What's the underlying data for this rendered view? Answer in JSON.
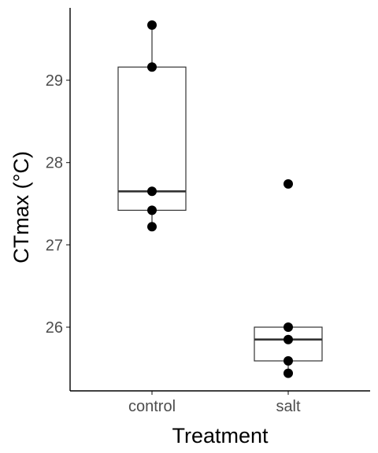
{
  "chart_data": {
    "type": "box",
    "xlabel": "Treatment",
    "ylabel": "CTmax (°C)",
    "categories": [
      "control",
      "salt"
    ],
    "ylim": [
      25.2,
      29.9
    ],
    "yticks": [
      26,
      27,
      28,
      29
    ],
    "ytick_labels": [
      "26",
      "27",
      "28",
      "29"
    ],
    "grid": false,
    "legend": "none",
    "boxes": [
      {
        "category": "control",
        "lower_whisker": 27.22,
        "q1": 27.42,
        "median": 27.65,
        "q3": 29.16,
        "upper_whisker": 29.67
      },
      {
        "category": "salt",
        "lower_whisker": 25.44,
        "q1": 25.59,
        "median": 25.85,
        "q3": 26.0,
        "upper_whisker": 26.0
      }
    ],
    "points": [
      {
        "category": "control",
        "values": [
          29.67,
          29.16,
          27.65,
          27.42,
          27.22
        ]
      },
      {
        "category": "salt",
        "values": [
          27.74,
          26.0,
          25.85,
          25.59,
          25.44
        ]
      }
    ],
    "colors": {
      "points": "#000000",
      "box_stroke": "#333333",
      "axis": "#000000"
    }
  }
}
